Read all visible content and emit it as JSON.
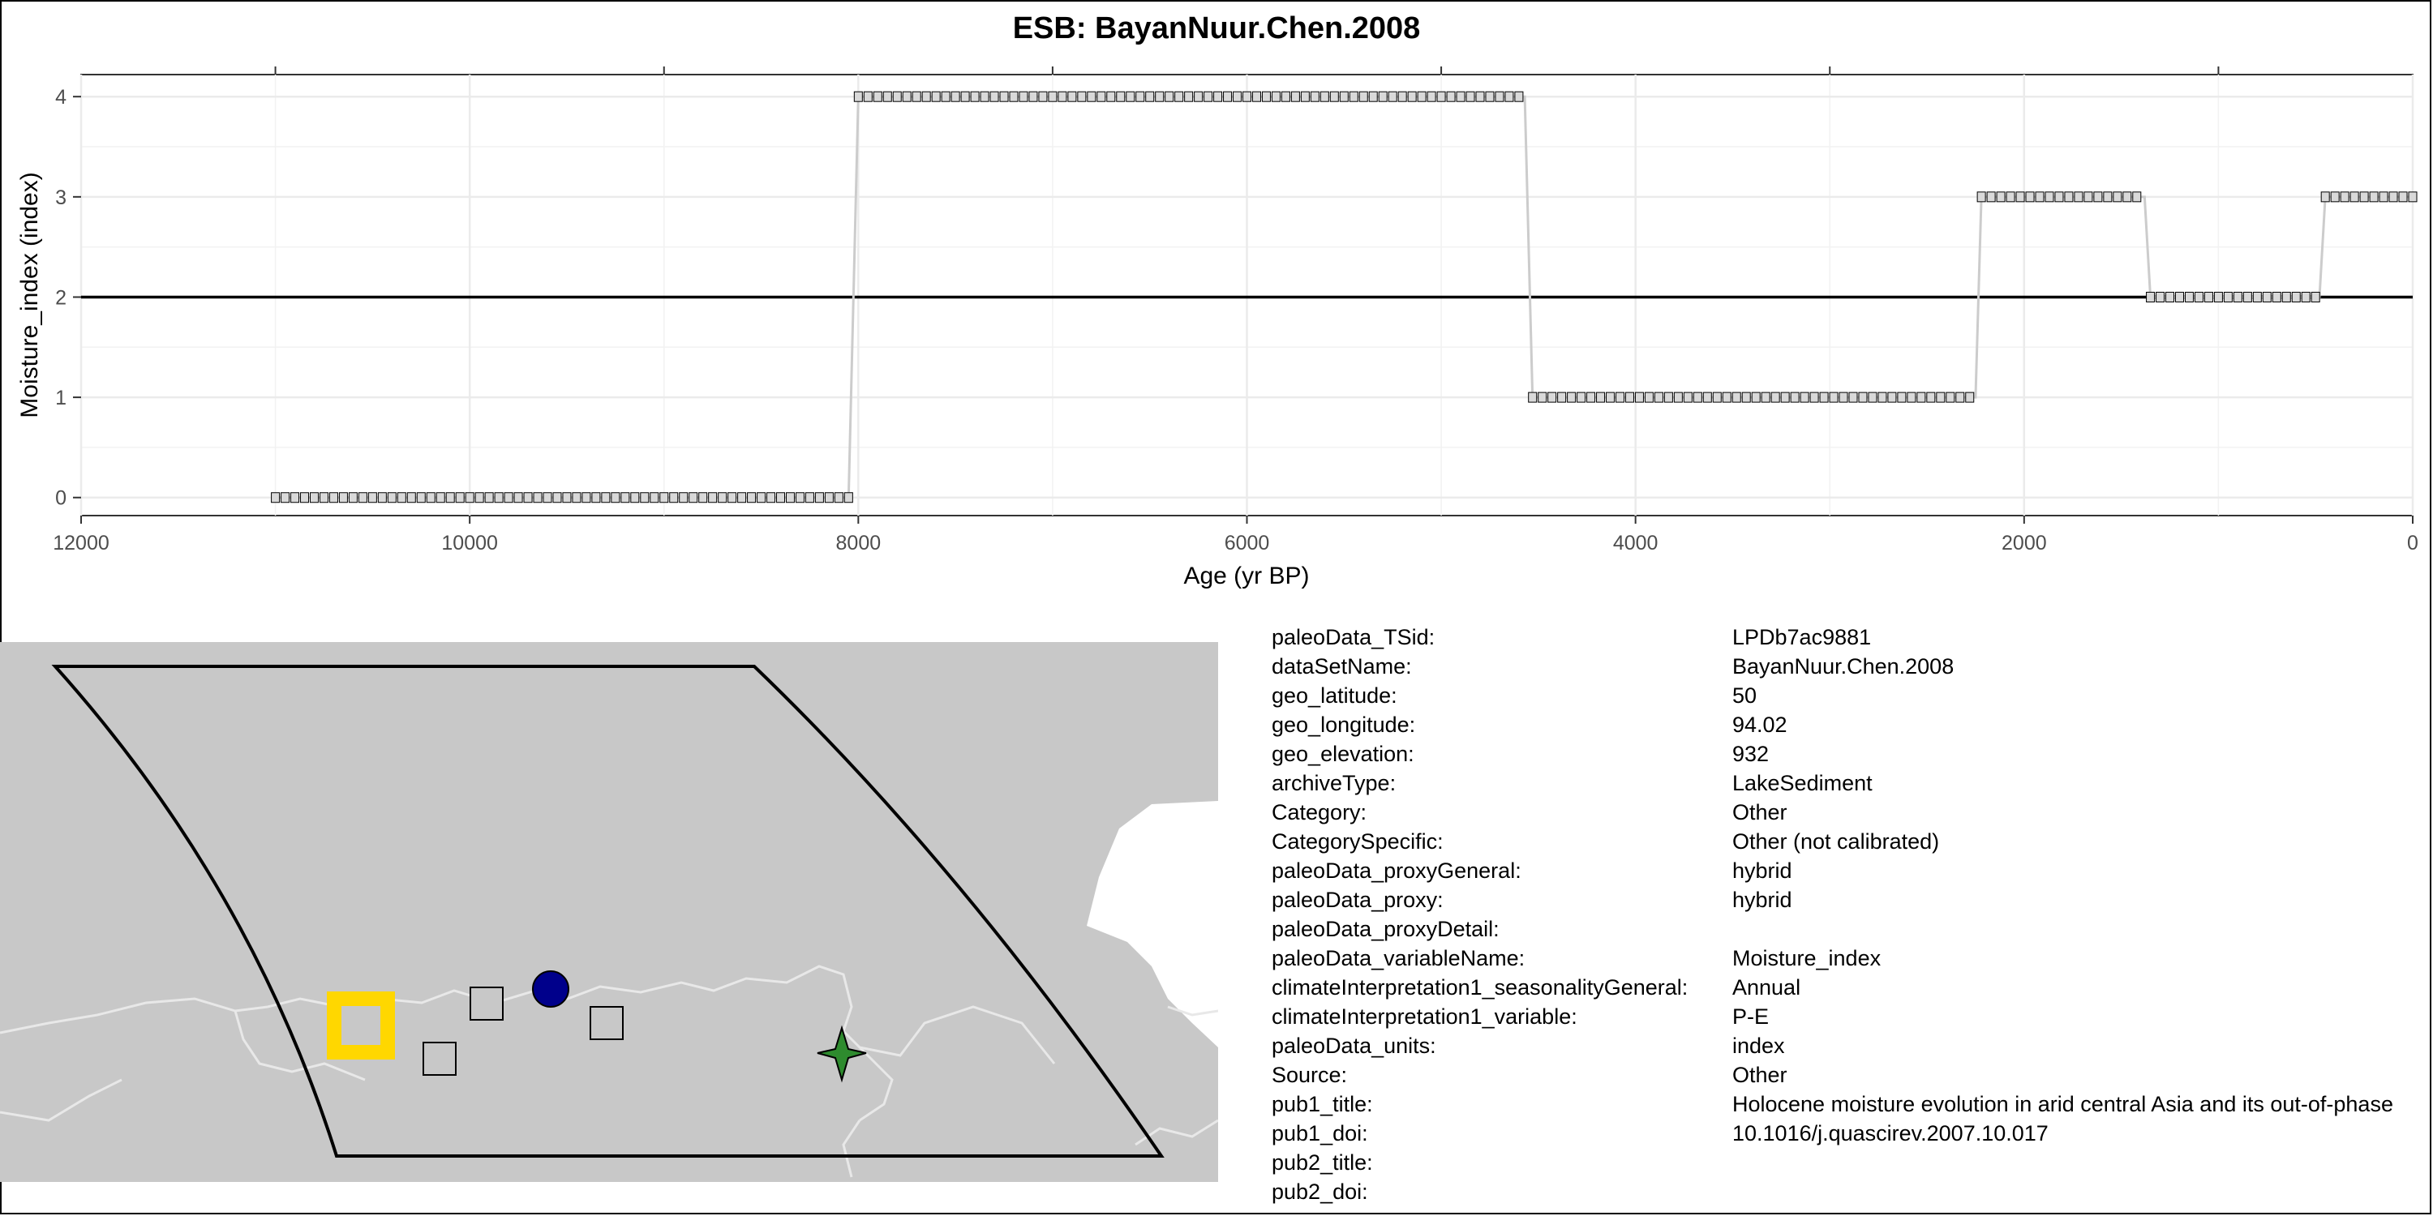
{
  "title": "ESB: BayanNuur.Chen.2008",
  "chart_data": {
    "type": "line",
    "title": "ESB: BayanNuur.Chen.2008",
    "xlabel": "Age (yr BP)",
    "ylabel": "Moisture_index (index)",
    "xlim": [
      12000,
      0
    ],
    "ylim": [
      -0.18,
      4.22
    ],
    "x_ticks": [
      12000,
      10000,
      8000,
      6000,
      4000,
      2000,
      0
    ],
    "y_ticks": [
      0,
      1,
      2,
      3,
      4
    ],
    "x_reversed": true,
    "grid": true,
    "reference_line_y": 2,
    "series": [
      {
        "color": "#cccccc",
        "marker": "square",
        "segments": [
          {
            "from": 11000,
            "to": 8050,
            "value": 0
          },
          {
            "from": 8000,
            "to": 4570,
            "value": 4
          },
          {
            "from": 4530,
            "to": 2250,
            "value": 1
          },
          {
            "from": 2220,
            "to": 1380,
            "value": 3
          },
          {
            "from": 1350,
            "to": 480,
            "value": 2
          },
          {
            "from": 450,
            "to": 0,
            "value": 3
          }
        ]
      }
    ]
  },
  "map": {
    "land_color": "#c8c8c8",
    "water_color": "#ffffff",
    "site_marker_color": "#ffd700",
    "circle_marker_color": "#00008b",
    "star_marker_color": "#2e8b2e"
  },
  "metadata": [
    {
      "key": "paleoData_TSid:",
      "value": "LPDb7ac9881"
    },
    {
      "key": "dataSetName:",
      "value": "BayanNuur.Chen.2008"
    },
    {
      "key": "geo_latitude:",
      "value": "50"
    },
    {
      "key": "geo_longitude:",
      "value": "94.02"
    },
    {
      "key": "geo_elevation:",
      "value": "932"
    },
    {
      "key": "archiveType:",
      "value": "LakeSediment"
    },
    {
      "key": "Category:",
      "value": "Other"
    },
    {
      "key": "CategorySpecific:",
      "value": "Other (not calibrated)"
    },
    {
      "key": "paleoData_proxyGeneral:",
      "value": "hybrid"
    },
    {
      "key": "paleoData_proxy:",
      "value": "hybrid"
    },
    {
      "key": "paleoData_proxyDetail:",
      "value": ""
    },
    {
      "key": "paleoData_variableName:",
      "value": "Moisture_index"
    },
    {
      "key": "climateInterpretation1_seasonalityGeneral:",
      "value": "Annual"
    },
    {
      "key": "climateInterpretation1_variable:",
      "value": "P-E"
    },
    {
      "key": "paleoData_units:",
      "value": "index"
    },
    {
      "key": "Source:",
      "value": "Other"
    },
    {
      "key": "pub1_title:",
      "value": "Holocene moisture evolution in arid central Asia and its out-of-phase"
    },
    {
      "key": "pub1_doi:",
      "value": "10.1016/j.quascirev.2007.10.017"
    },
    {
      "key": "pub2_title:",
      "value": ""
    },
    {
      "key": "pub2_doi:",
      "value": ""
    }
  ]
}
